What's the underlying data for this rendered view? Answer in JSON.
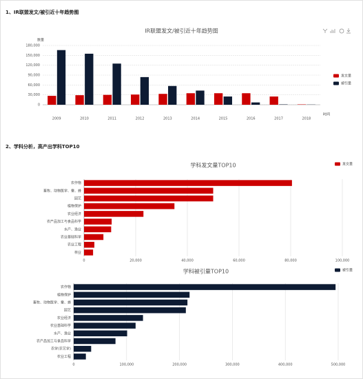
{
  "headings": [
    "1、IR联盟发文/被引近十年趋势图",
    "2、学科分析，高产出学科TOP10"
  ],
  "chart_data": [
    {
      "type": "bar",
      "title": "IR联盟发文/被引近十年趋势图",
      "y_label": "数量",
      "x_label": "时间",
      "categories": [
        "2009",
        "2010",
        "2011",
        "2012",
        "2013",
        "2014",
        "2015",
        "2016",
        "2017",
        "2018"
      ],
      "series": [
        {
          "name": "发文量",
          "color": "#cc0000",
          "values": [
            27000,
            29000,
            30000,
            31000,
            33000,
            35000,
            35000,
            35000,
            25000,
            1000
          ]
        },
        {
          "name": "被引量",
          "color": "#0d1b33",
          "values": [
            166000,
            155000,
            125000,
            84000,
            57000,
            43000,
            25000,
            7000,
            1000,
            500
          ]
        }
      ],
      "ylim": [
        0,
        180000
      ],
      "yticks": [
        0,
        {
          "value": 30000,
          "label": "30,000"
        },
        {
          "value": 60000,
          "label": "60,000"
        },
        {
          "value": 90000,
          "label": "90,000"
        },
        {
          "value": 120000,
          "label": "120,000"
        },
        {
          "value": 150000,
          "label": "150,000"
        },
        {
          "value": 180000,
          "label": "180,000"
        }
      ],
      "grid": true,
      "legend": "right"
    },
    {
      "type": "bar",
      "orientation": "horizontal",
      "title": "学科发文量TOP10",
      "categories": [
        "农作物",
        "畜牧、动物医学、蚕、蜂",
        "园艺",
        "植物保护",
        "农业经济",
        "农产品加工与食品科学",
        "水产、渔业",
        "农业基础科学",
        "农业工程",
        "林业"
      ],
      "series": [
        {
          "name": "发文量",
          "color": "#cc0000",
          "values": [
            80500,
            50000,
            50000,
            35000,
            23000,
            10700,
            10500,
            7500,
            4000,
            3500
          ]
        }
      ],
      "xlim": [
        0,
        100000
      ],
      "xticks": [
        0,
        {
          "value": 20000,
          "label": "20,000"
        },
        {
          "value": 40000,
          "label": "40,000"
        },
        {
          "value": 60000,
          "label": "60,000"
        },
        {
          "value": 80000,
          "label": "80,000"
        },
        {
          "value": 100000,
          "label": "100,000"
        }
      ],
      "grid": true,
      "legend": "top-right"
    },
    {
      "type": "bar",
      "orientation": "horizontal",
      "title": "学科被引量TOP10",
      "categories": [
        "农作物",
        "植物保护",
        "畜牧、动物医学、蚕、蜂",
        "园艺",
        "农业经济",
        "农业基础科学",
        "水产、渔业",
        "农产品加工与食品科学",
        "农学(农艺学)",
        "农业工程"
      ],
      "series": [
        {
          "name": "被引量",
          "color": "#0d1b33",
          "values": [
            495000,
            219000,
            215000,
            212000,
            131000,
            117000,
            101000,
            79000,
            33000,
            23000
          ]
        }
      ],
      "xlim": [
        0,
        500000
      ],
      "xticks": [
        0,
        {
          "value": 100000,
          "label": "100,000"
        },
        {
          "value": 200000,
          "label": "200,000"
        },
        {
          "value": 300000,
          "label": "300,000"
        },
        {
          "value": 400000,
          "label": "400,000"
        },
        {
          "value": 500000,
          "label": "500,000"
        }
      ],
      "grid": true,
      "legend": "top-right"
    }
  ]
}
